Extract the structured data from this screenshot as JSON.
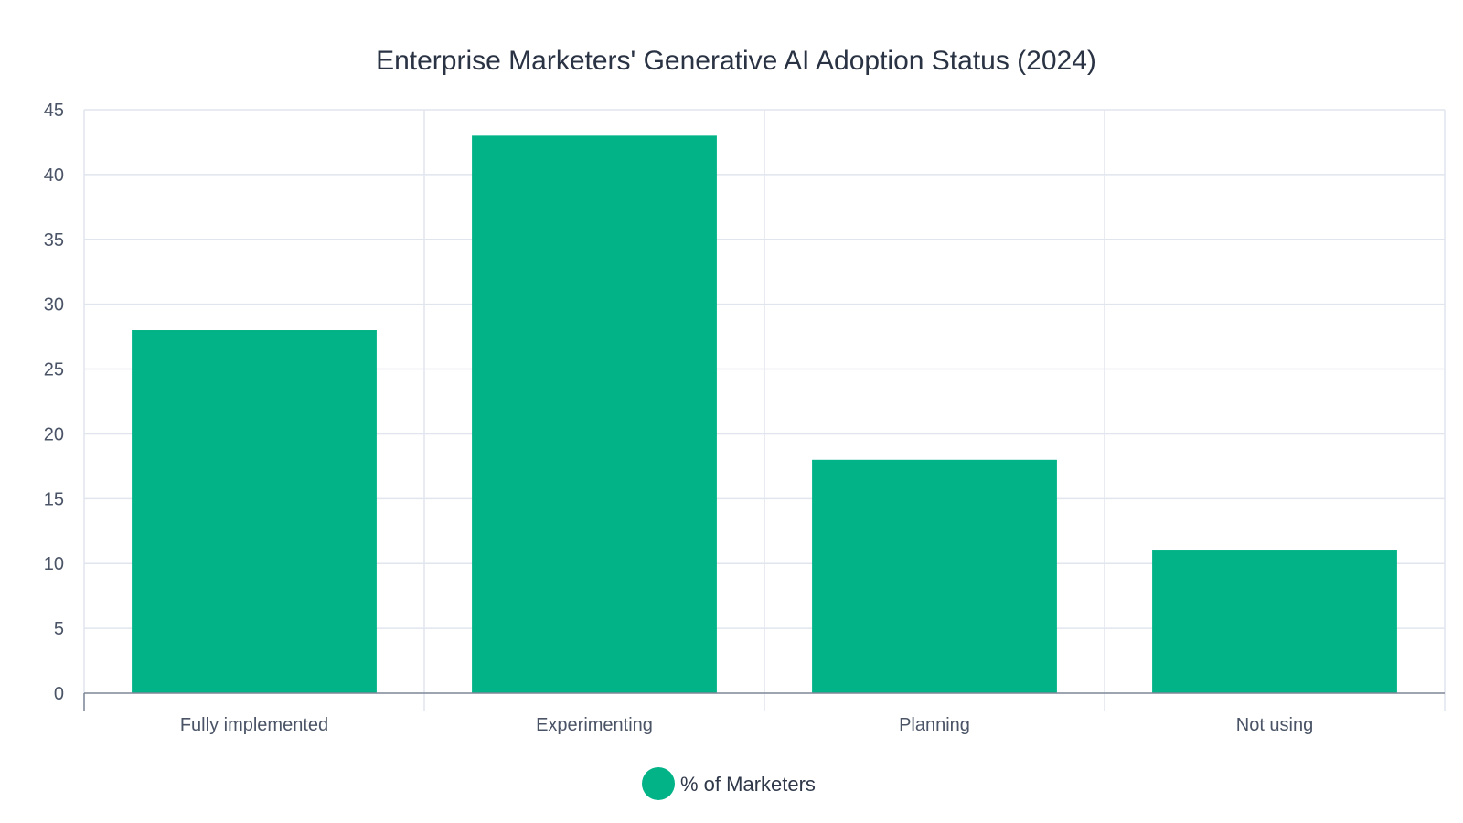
{
  "chart_data": {
    "type": "bar",
    "title": "Enterprise Marketers' Generative AI Adoption Status (2024)",
    "categories": [
      "Fully implemented",
      "Experimenting",
      "Planning",
      "Not using"
    ],
    "series": [
      {
        "name": "% of Marketers",
        "values": [
          28,
          43,
          18,
          11
        ],
        "color": "#02b388"
      }
    ],
    "xlabel": "",
    "ylabel": "",
    "ylim": [
      0,
      45
    ],
    "yticks": [
      0,
      5,
      10,
      15,
      20,
      25,
      30,
      35,
      40,
      45
    ],
    "grid": true,
    "legend": "bottom-center"
  }
}
